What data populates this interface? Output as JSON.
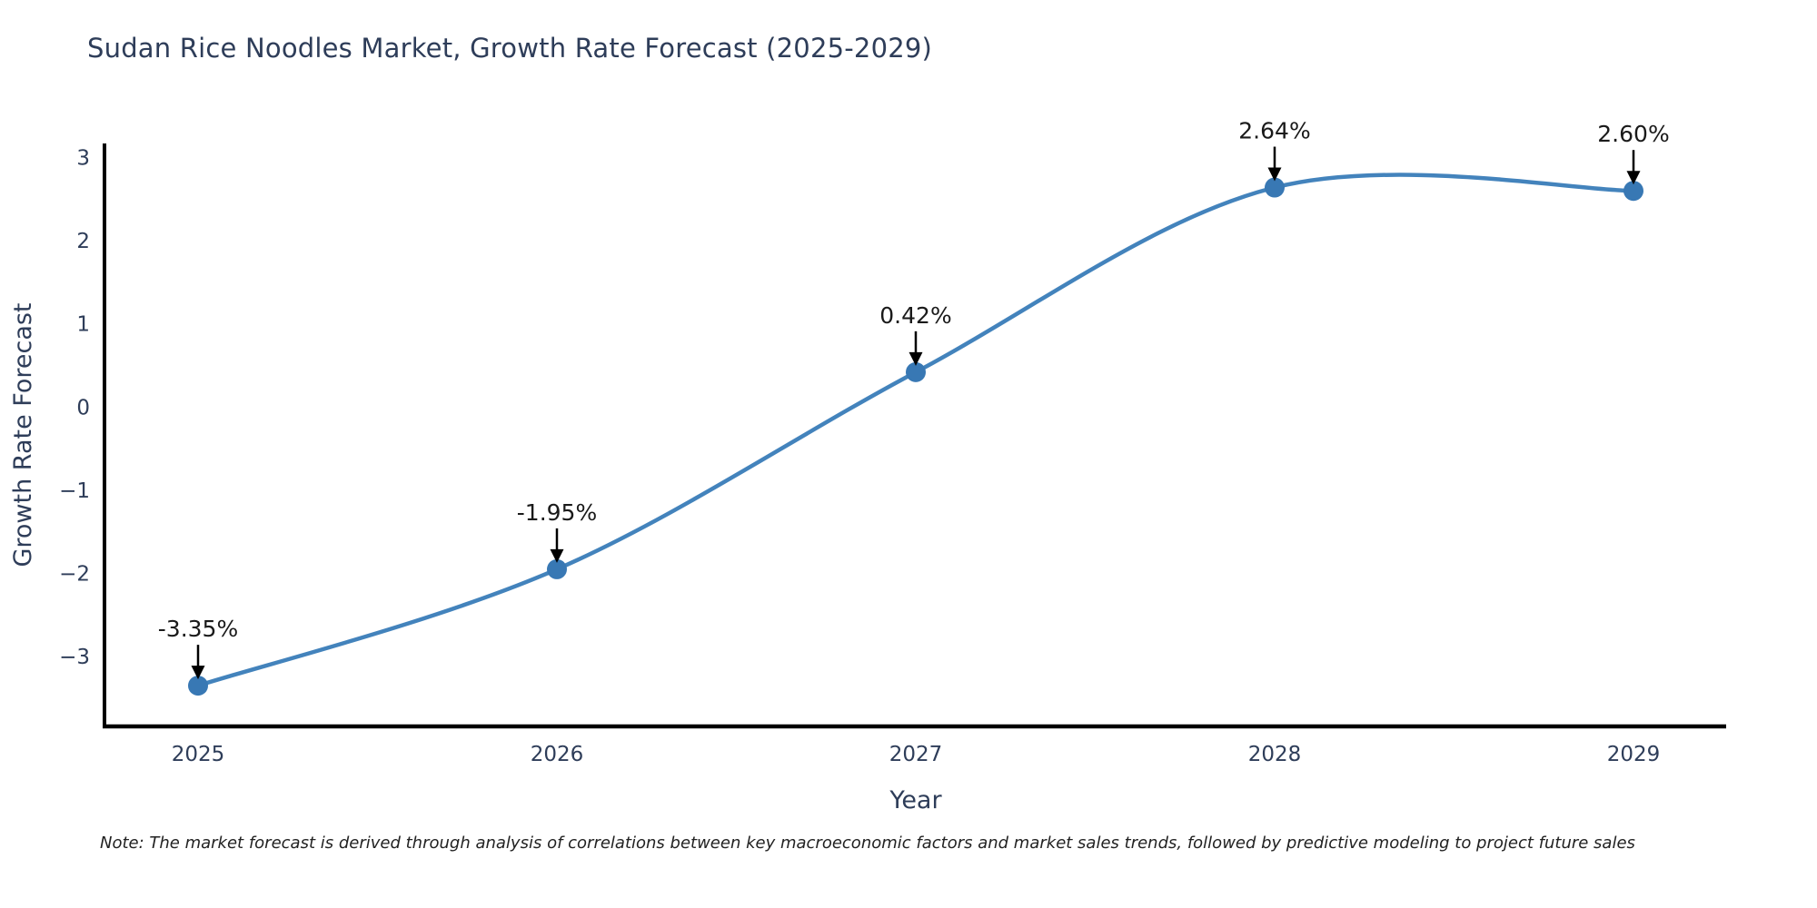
{
  "title": "Sudan Rice Noodles Market, Growth Rate Forecast (2025-2029)",
  "note": "Note: The market forecast is derived through analysis of correlations between key macroeconomic factors and market sales trends, followed by predictive modeling to project future sales",
  "chart_data": {
    "type": "line",
    "title": "Sudan Rice Noodles Market, Growth Rate Forecast (2025-2029)",
    "xlabel": "Year",
    "ylabel": "Growth Rate Forecast",
    "x": [
      2025,
      2026,
      2027,
      2028,
      2029
    ],
    "values": [
      -3.35,
      -1.95,
      0.42,
      2.64,
      2.6
    ],
    "point_labels": [
      "-3.35%",
      "-1.95%",
      "0.42%",
      "2.64%",
      "2.60%"
    ],
    "xtick_labels": [
      "2025",
      "2026",
      "2027",
      "2028",
      "2029"
    ],
    "yticks": [
      3,
      2,
      1,
      0,
      -1,
      -2,
      -3
    ],
    "ytick_labels": [
      "3",
      "2",
      "1",
      "0",
      "−1",
      "−2",
      "−3"
    ],
    "ylim": [
      -3.84,
      3.17
    ],
    "line_shape": "spline",
    "grid": false,
    "legend_position": "none",
    "colors": {
      "line": "#4383bc",
      "marker": "#3878b4",
      "axis": "#000000",
      "tick_text": "#2e3d59",
      "annotation_text": "#1a1a1a",
      "arrow": "#000000"
    }
  }
}
